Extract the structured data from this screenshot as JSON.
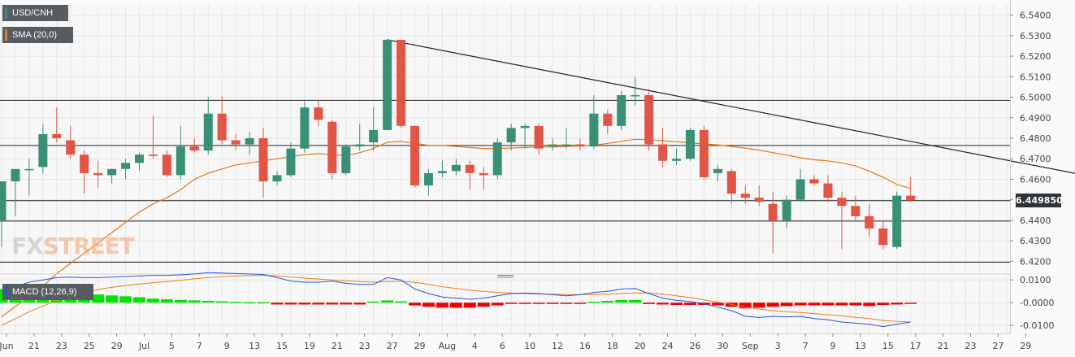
{
  "legend": {
    "instrument": "USD/CNH",
    "sma": "SMA (20,0)",
    "macd": "MACD (12,26,9)"
  },
  "colors": {
    "bull": "#3a8f77",
    "bear": "#e05545",
    "sma": "#e8771a",
    "macd_line": "#2b55d6",
    "signal_line": "#f07c1c",
    "hist_pos": "#00e600",
    "hist_neg": "#e8000b",
    "trendline": "#222222"
  },
  "price_tag": "6.449850",
  "watermark": {
    "part1": "FX",
    "part2": "STREET"
  },
  "chart_data": {
    "type": "candlestick",
    "price_axis": {
      "ylim": [
        6.415,
        6.545
      ],
      "ticks": [
        "6.5400",
        "6.5300",
        "6.5200",
        "6.5100",
        "6.5000",
        "6.4900",
        "6.4800",
        "6.4700",
        "6.4600",
        "6.4500",
        "6.4400",
        "6.4300",
        "6.4200"
      ]
    },
    "horizontal_levels": [
      6.4985,
      6.4765,
      6.4496,
      6.4396,
      6.4196
    ],
    "trendline": {
      "from_bar": 28,
      "from_price": 6.528,
      "to_bar": 79,
      "to_price": 6.4615
    },
    "x_labels": [
      {
        "bar": 0,
        "label": "Jun"
      },
      {
        "bar": 2,
        "label": "21"
      },
      {
        "bar": 4,
        "label": "23"
      },
      {
        "bar": 6,
        "label": "25"
      },
      {
        "bar": 8,
        "label": "29"
      },
      {
        "bar": 10,
        "label": "Jul"
      },
      {
        "bar": 12,
        "label": "5"
      },
      {
        "bar": 14,
        "label": "7"
      },
      {
        "bar": 16,
        "label": "9"
      },
      {
        "bar": 18,
        "label": "13"
      },
      {
        "bar": 20,
        "label": "15"
      },
      {
        "bar": 22,
        "label": "19"
      },
      {
        "bar": 24,
        "label": "21"
      },
      {
        "bar": 26,
        "label": "23"
      },
      {
        "bar": 28,
        "label": "27"
      },
      {
        "bar": 30,
        "label": "29"
      },
      {
        "bar": 32,
        "label": "Aug"
      },
      {
        "bar": 34,
        "label": "4"
      },
      {
        "bar": 36,
        "label": "6"
      },
      {
        "bar": 38,
        "label": "10"
      },
      {
        "bar": 40,
        "label": "12"
      },
      {
        "bar": 42,
        "label": "16"
      },
      {
        "bar": 44,
        "label": "18"
      },
      {
        "bar": 46,
        "label": "20"
      },
      {
        "bar": 48,
        "label": "24"
      },
      {
        "bar": 50,
        "label": "26"
      },
      {
        "bar": 52,
        "label": "30"
      },
      {
        "bar": 54,
        "label": "Sep"
      },
      {
        "bar": 56,
        "label": "3"
      },
      {
        "bar": 58,
        "label": "7"
      },
      {
        "bar": 60,
        "label": "9"
      },
      {
        "bar": 62,
        "label": "13"
      },
      {
        "bar": 64,
        "label": "15"
      },
      {
        "bar": 66,
        "label": "17"
      },
      {
        "bar": 68,
        "label": "21"
      },
      {
        "bar": 70,
        "label": "23"
      },
      {
        "bar": 72,
        "label": "27"
      },
      {
        "bar": 74,
        "label": "29"
      }
    ],
    "ohlc": [
      [
        6.44,
        6.459,
        6.427,
        6.459
      ],
      [
        6.459,
        6.465,
        6.442,
        6.465
      ],
      [
        6.4645,
        6.47,
        6.452,
        6.465
      ],
      [
        6.466,
        6.487,
        6.463,
        6.482
      ],
      [
        6.482,
        6.495,
        6.478,
        6.48
      ],
      [
        6.479,
        6.486,
        6.47,
        6.472
      ],
      [
        6.472,
        6.474,
        6.453,
        6.463
      ],
      [
        6.463,
        6.469,
        6.456,
        6.462
      ],
      [
        6.462,
        6.465,
        6.458,
        6.465
      ],
      [
        6.465,
        6.47,
        6.46,
        6.468
      ],
      [
        6.468,
        6.473,
        6.464,
        6.472
      ],
      [
        6.472,
        6.491,
        6.47,
        6.4715
      ],
      [
        6.472,
        6.474,
        6.461,
        6.462
      ],
      [
        6.462,
        6.486,
        6.46,
        6.476
      ],
      [
        6.476,
        6.48,
        6.473,
        6.474
      ],
      [
        6.474,
        6.5,
        6.472,
        6.492
      ],
      [
        6.492,
        6.5005,
        6.477,
        6.479
      ],
      [
        6.479,
        6.482,
        6.474,
        6.477
      ],
      [
        6.477,
        6.483,
        6.472,
        6.48
      ],
      [
        6.48,
        6.485,
        6.451,
        6.459
      ],
      [
        6.459,
        6.464,
        6.457,
        6.462
      ],
      [
        6.462,
        6.478,
        6.461,
        6.475
      ],
      [
        6.475,
        6.498,
        6.473,
        6.495
      ],
      [
        6.495,
        6.4985,
        6.486,
        6.489
      ],
      [
        6.488,
        6.489,
        6.46,
        6.463
      ],
      [
        6.463,
        6.477,
        6.462,
        6.476
      ],
      [
        6.476,
        6.487,
        6.474,
        6.477
      ],
      [
        6.478,
        6.495,
        6.474,
        6.484
      ],
      [
        6.484,
        6.528,
        6.484,
        6.528
      ],
      [
        6.528,
        6.528,
        6.485,
        6.486
      ],
      [
        6.486,
        6.486,
        6.456,
        6.457
      ],
      [
        6.457,
        6.465,
        6.452,
        6.463
      ],
      [
        6.463,
        6.469,
        6.461,
        6.464
      ],
      [
        6.464,
        6.47,
        6.462,
        6.467
      ],
      [
        6.467,
        6.469,
        6.455,
        6.463
      ],
      [
        6.463,
        6.466,
        6.455,
        6.462
      ],
      [
        6.462,
        6.48,
        6.46,
        6.478
      ],
      [
        6.478,
        6.487,
        6.474,
        6.485
      ],
      [
        6.485,
        6.487,
        6.475,
        6.486
      ],
      [
        6.486,
        6.487,
        6.472,
        6.475
      ],
      [
        6.476,
        6.48,
        6.474,
        6.477
      ],
      [
        6.477,
        6.485,
        6.475,
        6.477
      ],
      [
        6.477,
        6.48,
        6.474,
        6.476
      ],
      [
        6.476,
        6.501,
        6.475,
        6.492
      ],
      [
        6.492,
        6.494,
        6.482,
        6.486
      ],
      [
        6.486,
        6.503,
        6.484,
        6.501
      ],
      [
        6.501,
        6.51,
        6.496,
        6.501
      ],
      [
        6.501,
        6.504,
        6.474,
        6.477
      ],
      [
        6.477,
        6.485,
        6.466,
        6.469
      ],
      [
        6.469,
        6.475,
        6.467,
        6.47
      ],
      [
        6.47,
        6.485,
        6.469,
        6.484
      ],
      [
        6.484,
        6.486,
        6.46,
        6.461
      ],
      [
        6.463,
        6.467,
        6.459,
        6.465
      ],
      [
        6.464,
        6.465,
        6.448,
        6.453
      ],
      [
        6.453,
        6.457,
        6.448,
        6.451
      ],
      [
        6.451,
        6.457,
        6.447,
        6.449
      ],
      [
        6.448,
        6.454,
        6.424,
        6.44
      ],
      [
        6.44,
        6.452,
        6.436,
        6.45
      ],
      [
        6.45,
        6.465,
        6.449,
        6.46
      ],
      [
        6.46,
        6.462,
        6.457,
        6.458
      ],
      [
        6.458,
        6.462,
        6.449,
        6.451
      ],
      [
        6.451,
        6.454,
        6.426,
        6.447
      ],
      [
        6.447,
        6.452,
        6.44,
        6.442
      ],
      [
        6.442,
        6.448,
        6.432,
        6.436
      ],
      [
        6.436,
        6.44,
        6.426,
        6.428
      ],
      [
        6.427,
        6.454,
        6.426,
        6.452
      ],
      [
        6.452,
        6.461,
        6.449,
        6.4498
      ]
    ],
    "sma": [
      6.393,
      6.398,
      6.403,
      6.408,
      6.414,
      6.419,
      6.424,
      6.429,
      6.434,
      6.439,
      6.444,
      6.448,
      6.451,
      6.455,
      6.46,
      6.463,
      6.465,
      6.467,
      6.468,
      6.469,
      6.47,
      6.471,
      6.472,
      6.4725,
      6.472,
      6.4715,
      6.473,
      6.475,
      6.478,
      6.4785,
      6.4775,
      6.4765,
      6.4765,
      6.476,
      6.4755,
      6.475,
      6.475,
      6.4752,
      6.4755,
      6.4757,
      6.4757,
      6.476,
      6.4763,
      6.4765,
      6.4775,
      6.4785,
      6.4795,
      6.4793,
      6.4788,
      6.4783,
      6.4778,
      6.4772,
      6.4768,
      6.476,
      6.4752,
      6.4742,
      6.473,
      6.4718,
      6.4705,
      6.4695,
      6.469,
      6.468,
      6.4665,
      6.464,
      6.461,
      6.4575,
      6.4555
    ],
    "macd": {
      "ylim": [
        -0.0135,
        0.0115
      ],
      "ticks": [
        "0.0100",
        "-0.0000",
        "-0.0100"
      ],
      "macd_line": [
        0.004,
        0.007,
        0.009,
        0.01,
        0.011,
        0.0112,
        0.011,
        0.011,
        0.0112,
        0.0115,
        0.0118,
        0.012,
        0.012,
        0.0122,
        0.0126,
        0.0132,
        0.013,
        0.0128,
        0.0126,
        0.0124,
        0.011,
        0.0095,
        0.009,
        0.009,
        0.0095,
        0.0085,
        0.008,
        0.008,
        0.011,
        0.01,
        0.006,
        0.004,
        0.0025,
        0.002,
        0.0015,
        0.002,
        0.003,
        0.004,
        0.0042,
        0.004,
        0.0035,
        0.003,
        0.0035,
        0.0045,
        0.005,
        0.006,
        0.0062,
        0.004,
        0.002,
        0.001,
        0.0005,
        -0.0005,
        -0.002,
        -0.0035,
        -0.006,
        -0.0065,
        -0.006,
        -0.0062,
        -0.006,
        -0.007,
        -0.0075,
        -0.0085,
        -0.009,
        -0.0095,
        -0.0105,
        -0.0095,
        -0.0085
      ],
      "signal_line": [
        -0.01,
        -0.007,
        -0.004,
        -0.0015,
        0.001,
        0.003,
        0.0045,
        0.0058,
        0.0068,
        0.0075,
        0.0082,
        0.0088,
        0.0093,
        0.0098,
        0.0105,
        0.011,
        0.0114,
        0.0117,
        0.0119,
        0.012,
        0.0118,
        0.0113,
        0.0108,
        0.0104,
        0.01,
        0.0096,
        0.0093,
        0.009,
        0.0093,
        0.0094,
        0.0089,
        0.008,
        0.007,
        0.0062,
        0.0055,
        0.005,
        0.0045,
        0.0042,
        0.004,
        0.0038,
        0.0037,
        0.0036,
        0.0035,
        0.0036,
        0.0038,
        0.004,
        0.0043,
        0.0043,
        0.0038,
        0.003,
        0.0022,
        0.0012,
        0.0002,
        -0.0008,
        -0.002,
        -0.0028,
        -0.0035,
        -0.004,
        -0.0043,
        -0.0048,
        -0.0053,
        -0.0058,
        -0.0064,
        -0.007,
        -0.0078,
        -0.0082,
        -0.0085
      ],
      "histogram": [
        0.006,
        0.006,
        0.0058,
        0.0055,
        0.0052,
        0.0045,
        0.004,
        0.0036,
        0.0032,
        0.0028,
        0.0024,
        0.0018,
        0.0015,
        0.0012,
        0.001,
        0.0008,
        0.0006,
        0.0004,
        0.0002,
        0.0002,
        -0.0008,
        -0.0008,
        -0.0008,
        -0.0008,
        -0.0008,
        -0.0008,
        -0.0008,
        0.0005,
        0.001,
        0.0006,
        -0.0012,
        -0.0018,
        -0.0022,
        -0.0022,
        -0.0022,
        -0.0018,
        -0.0012,
        -0.0005,
        -0.0004,
        -0.0004,
        -0.0005,
        -0.0004,
        -0.0001,
        0.0004,
        0.0008,
        0.0012,
        0.0012,
        -0.0006,
        -0.0008,
        -0.001,
        -0.001,
        -0.001,
        -0.0012,
        -0.0018,
        -0.0025,
        -0.0022,
        -0.0018,
        -0.0015,
        -0.0012,
        -0.0012,
        -0.0012,
        -0.0012,
        -0.0012,
        -0.0015,
        -0.001,
        -0.0008,
        -0.0005
      ]
    }
  }
}
